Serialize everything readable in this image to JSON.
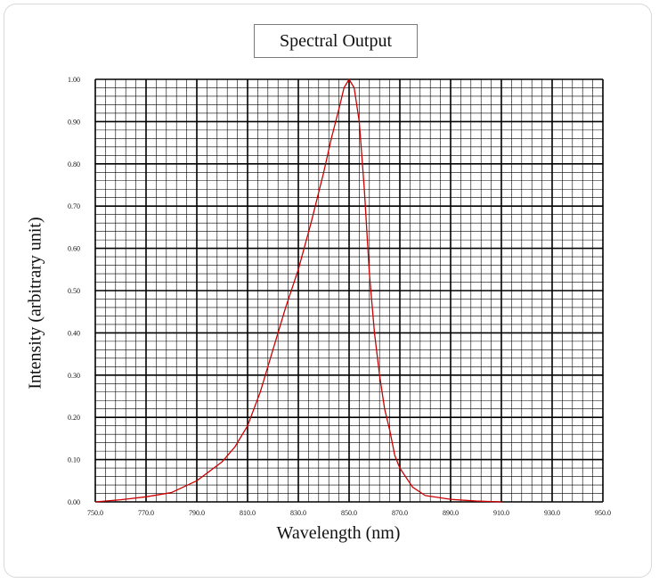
{
  "chart_data": {
    "type": "line",
    "title": "Spectral Output",
    "xlabel": "Wavelength (nm)",
    "ylabel": "Intensity (arbitrary unit)",
    "xlim": [
      750,
      950
    ],
    "ylim": [
      0,
      1
    ],
    "x_ticks": [
      750,
      770,
      790,
      810,
      830,
      850,
      870,
      890,
      910,
      930,
      950
    ],
    "x_tick_labels": [
      "750.0",
      "770.0",
      "790.0",
      "810.0",
      "830.0",
      "850.0",
      "870.0",
      "890.0",
      "910.0",
      "930.0",
      "950.0"
    ],
    "y_ticks": [
      0,
      0.1,
      0.2,
      0.3,
      0.4,
      0.5,
      0.6,
      0.7,
      0.8,
      0.9,
      1.0
    ],
    "y_tick_labels": [
      "0.00",
      "0.10",
      "0.20",
      "0.30",
      "0.40",
      "0.50",
      "0.60",
      "0.70",
      "0.80",
      "0.90",
      "1.00"
    ],
    "grid": true,
    "minor_grid_x_step": 4,
    "minor_grid_y_step": 0.02,
    "line_color": "#cc0000",
    "grid_color": "#000000",
    "series": [
      {
        "x": [
          750,
          760,
          770,
          780,
          790,
          800,
          805,
          810,
          815,
          820,
          825,
          830,
          835,
          840,
          843,
          846,
          848,
          850,
          852,
          854,
          856,
          858,
          860,
          862,
          864,
          866,
          868,
          870,
          875,
          880,
          890,
          900,
          910
        ],
        "values": [
          0.0,
          0.005,
          0.012,
          0.022,
          0.05,
          0.095,
          0.13,
          0.18,
          0.26,
          0.36,
          0.46,
          0.55,
          0.66,
          0.78,
          0.86,
          0.93,
          0.98,
          1.0,
          0.98,
          0.9,
          0.74,
          0.54,
          0.4,
          0.3,
          0.22,
          0.17,
          0.11,
          0.08,
          0.035,
          0.015,
          0.006,
          0.002,
          0.0
        ]
      }
    ]
  }
}
